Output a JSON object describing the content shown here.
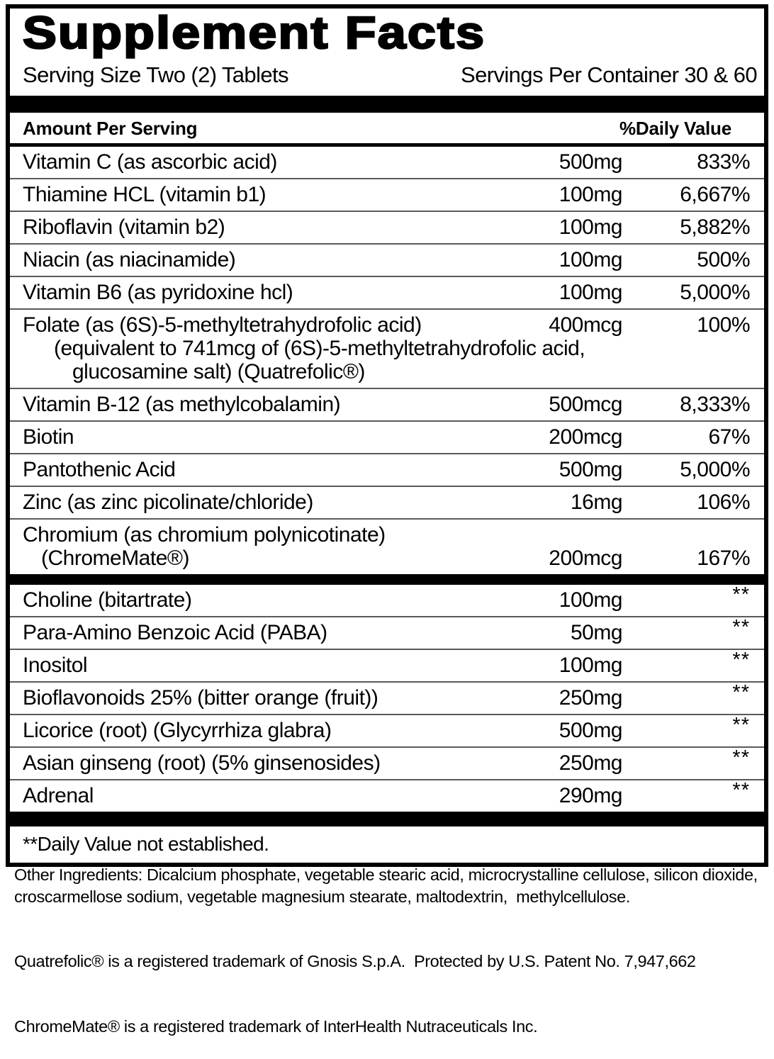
{
  "label": {
    "title": "Supplement Facts",
    "serving_size": "Serving Size Two (2) Tablets",
    "servings_per_container": "Servings Per Container 30 & 60",
    "column_headers": {
      "amount": "Amount Per Serving",
      "daily_value": "%Daily Value"
    },
    "rows": [
      {
        "name": "Vitamin C (as ascorbic acid)",
        "amount": "500mg",
        "dv": "833%"
      },
      {
        "name": "Thiamine HCL (vitamin b1)",
        "amount": "100mg",
        "dv": "6,667%"
      },
      {
        "name": "Riboflavin (vitamin b2)",
        "amount": "100mg",
        "dv": "5,882%"
      },
      {
        "name": "Niacin (as niacinamide)",
        "amount": "100mg",
        "dv": "500%"
      },
      {
        "name": "Vitamin B6 (as pyridoxine hcl)",
        "amount": "100mg",
        "dv": "5,000%"
      },
      {
        "name": "Folate (as (6S)-5-methyltetrahydrofolic acid)",
        "amount": "400mcg",
        "dv": "100%",
        "cont1": "(equivalent to 741mcg of (6S)-5-methyltetrahydrofolic acid,",
        "cont2": "glucosamine salt) (Quatrefolic®)"
      },
      {
        "name": "Vitamin B-12 (as methylcobalamin)",
        "amount": "500mcg",
        "dv": "8,333%"
      },
      {
        "name": "Biotin",
        "amount": "200mcg",
        "dv": "67%"
      },
      {
        "name": "Pantothenic Acid",
        "amount": "500mg",
        "dv": "5,000%"
      },
      {
        "name": "Zinc (as zinc picolinate/chloride)",
        "amount": "16mg",
        "dv": "106%"
      },
      {
        "name": "Chromium (as chromium polynicotinate)",
        "amount": "200mcg",
        "dv": "167%",
        "cont1": "(ChromeMate®)"
      }
    ],
    "rows2": [
      {
        "name": "Choline (bitartrate)",
        "amount": "100mg",
        "dv": "**"
      },
      {
        "name": "Para-Amino Benzoic Acid (PABA)",
        "amount": "50mg",
        "dv": "**"
      },
      {
        "name": "Inositol",
        "amount": "100mg",
        "dv": "**"
      },
      {
        "name": "Bioflavonoids 25% (bitter orange (fruit))",
        "amount": "250mg",
        "dv": "**"
      },
      {
        "name": "Licorice (root) (Glycyrrhiza glabra)",
        "amount": "500mg",
        "dv": "**"
      },
      {
        "name": "Asian ginseng (root) (5% ginsenosides)",
        "amount": "250mg",
        "dv": "**"
      },
      {
        "name": "Adrenal",
        "amount": "290mg",
        "dv": "**"
      }
    ],
    "footnote": "**Daily Value not established."
  },
  "footer": {
    "other_ingredients": "Other Ingredients: Dicalcium phosphate, vegetable stearic acid, microcrystalline cellulose, silicon dioxide,\ncroscarmellose sodium, vegetable magnesium stearate, maltodextrin,  methylcellulose.",
    "quatrefolic_note": "Quatrefolic® is a registered trademark of Gnosis S.p.A.  Protected by U.S. Patent No. 7,947,662",
    "chromemate_note": "ChromeMate® is a registered trademark of InterHealth Nutraceuticals Inc."
  }
}
